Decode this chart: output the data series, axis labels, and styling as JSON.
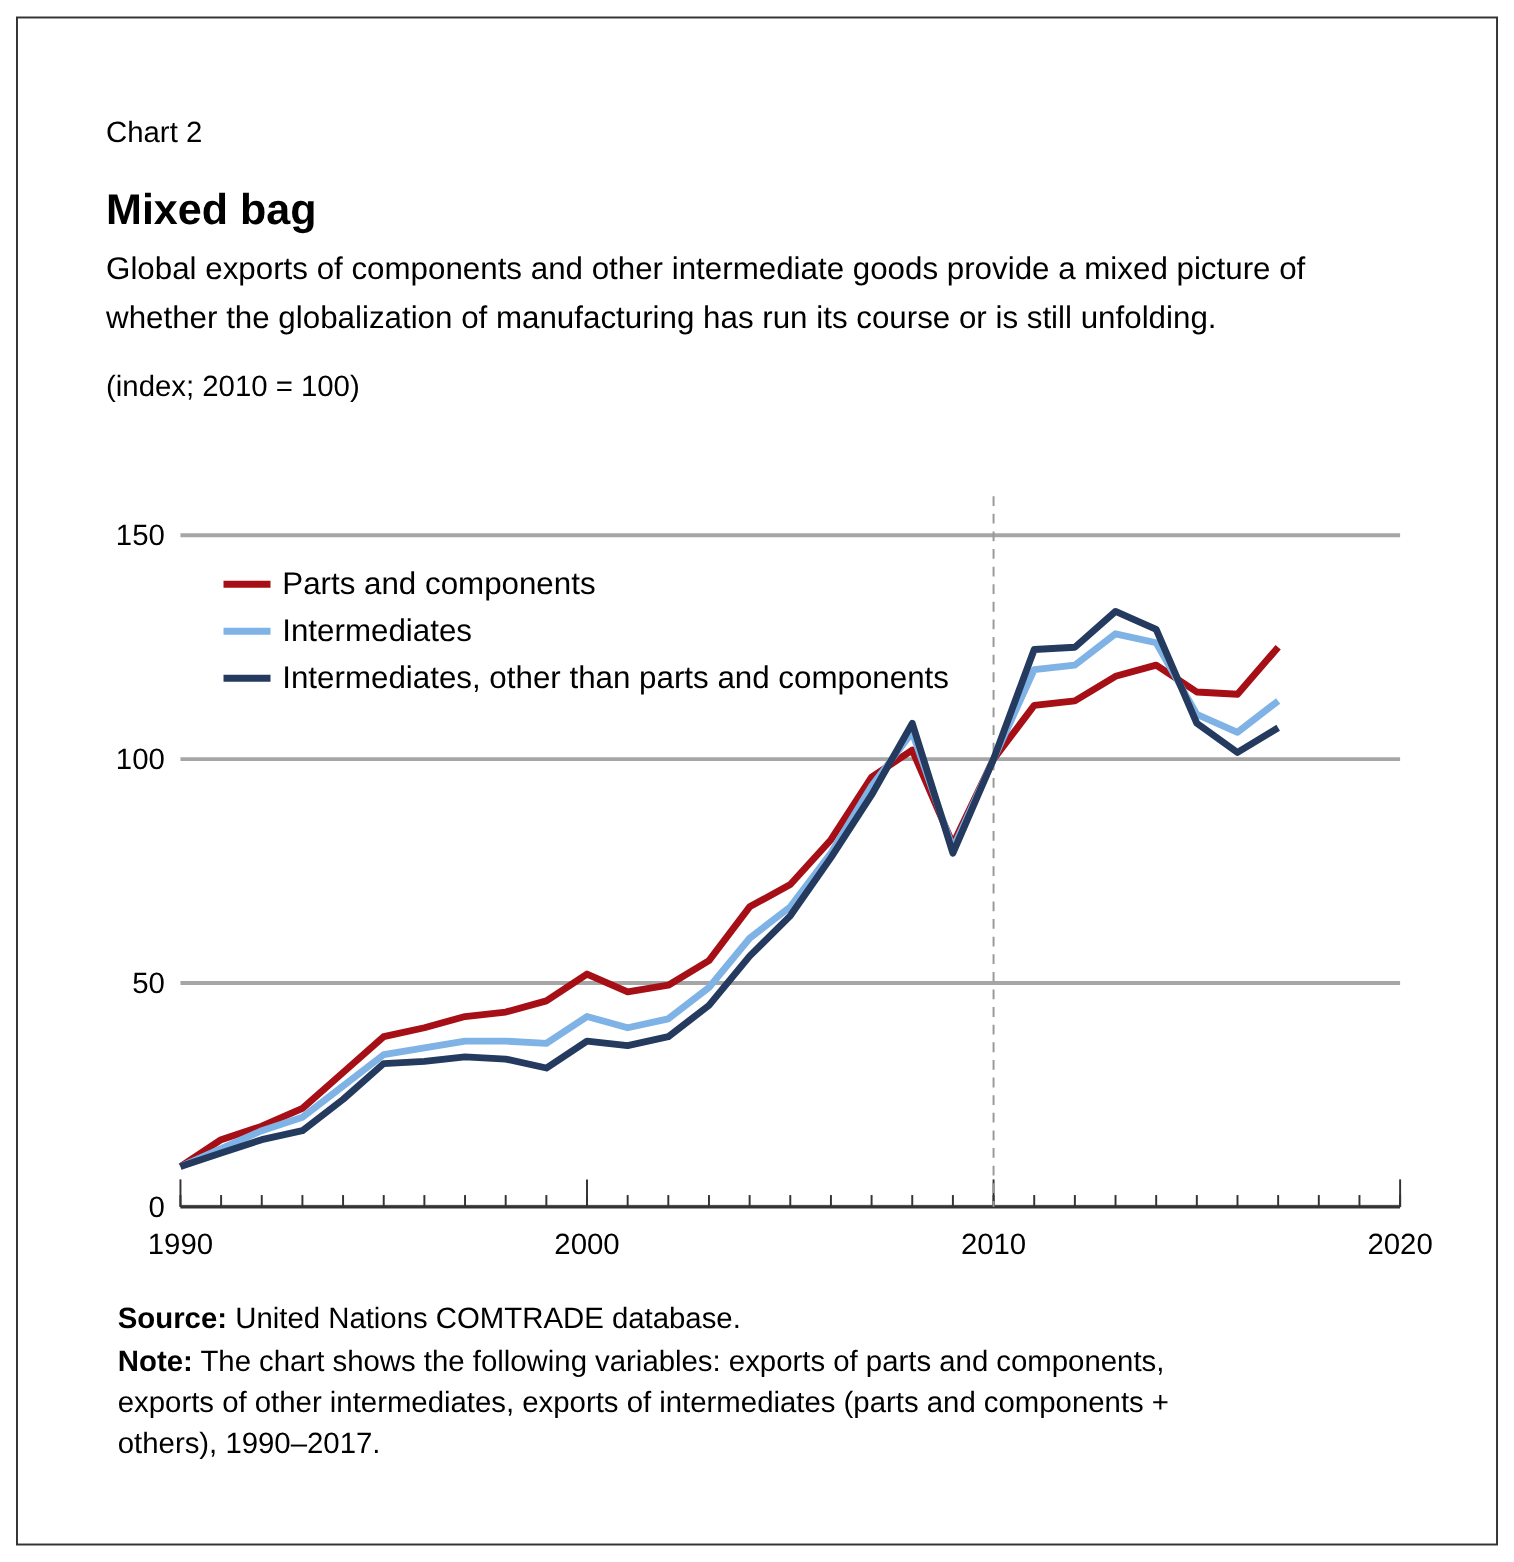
{
  "chart_data": {
    "type": "line",
    "title": "Mixed bag",
    "subtitle": "Global exports of components and other intermediate goods provide a mixed picture of whether the globalization of manufacturing has run its course or is still unfolding.",
    "ylabel": "(index; 2010 = 100)",
    "x": [
      1990,
      1991,
      1992,
      1993,
      1994,
      1995,
      1996,
      1997,
      1998,
      1999,
      2000,
      2001,
      2002,
      2003,
      2004,
      2005,
      2006,
      2007,
      2008,
      2009,
      2010,
      2011,
      2012,
      2013,
      2014,
      2015,
      2016,
      2017
    ],
    "series": [
      {
        "name": "Parts and components",
        "color": "#a50f15",
        "values": [
          9,
          15,
          18,
          22,
          30,
          38,
          40,
          42.5,
          43.5,
          46,
          52,
          48,
          49.5,
          55,
          67,
          72,
          82,
          96,
          102,
          81,
          100,
          112,
          113,
          118.5,
          121,
          115,
          114.5,
          125
        ]
      },
      {
        "name": "Intermediates",
        "color": "#7fb2e5",
        "values": [
          9,
          13,
          17,
          20,
          27,
          34,
          35.5,
          37,
          37,
          36.5,
          42.5,
          40,
          42,
          49,
          60,
          67,
          79,
          94,
          106,
          80,
          100,
          120,
          121,
          128,
          126,
          110,
          106,
          113
        ]
      },
      {
        "name": "Intermediates, other than parts and components",
        "color": "#243a5e",
        "values": [
          9,
          12,
          15,
          17,
          24,
          32,
          32.5,
          33.5,
          33,
          31,
          37,
          36,
          38,
          45,
          56,
          65,
          78,
          92,
          108,
          79,
          100,
          124.5,
          125,
          133,
          129,
          108,
          101.5,
          107
        ]
      }
    ],
    "xlim": [
      1990,
      2020
    ],
    "xticks": [
      1990,
      2000,
      2010,
      2020
    ],
    "ylim": [
      0,
      150
    ],
    "yticks": [
      0,
      50,
      100,
      150
    ],
    "grid": "y",
    "legend": "top left",
    "line_style": "solid",
    "marker": "none",
    "ref_lines": [
      {
        "axis": "x",
        "value": 2010,
        "color": "#999999",
        "line_style": "dashed"
      }
    ],
    "annotations": [
      "Chart 2",
      "Source: United Nations COMTRADE database.",
      "Note: The chart shows the following variables: exports of parts and components, exports of other intermediates, exports of intermediates (parts and components + others), 1990–2017."
    ]
  }
}
